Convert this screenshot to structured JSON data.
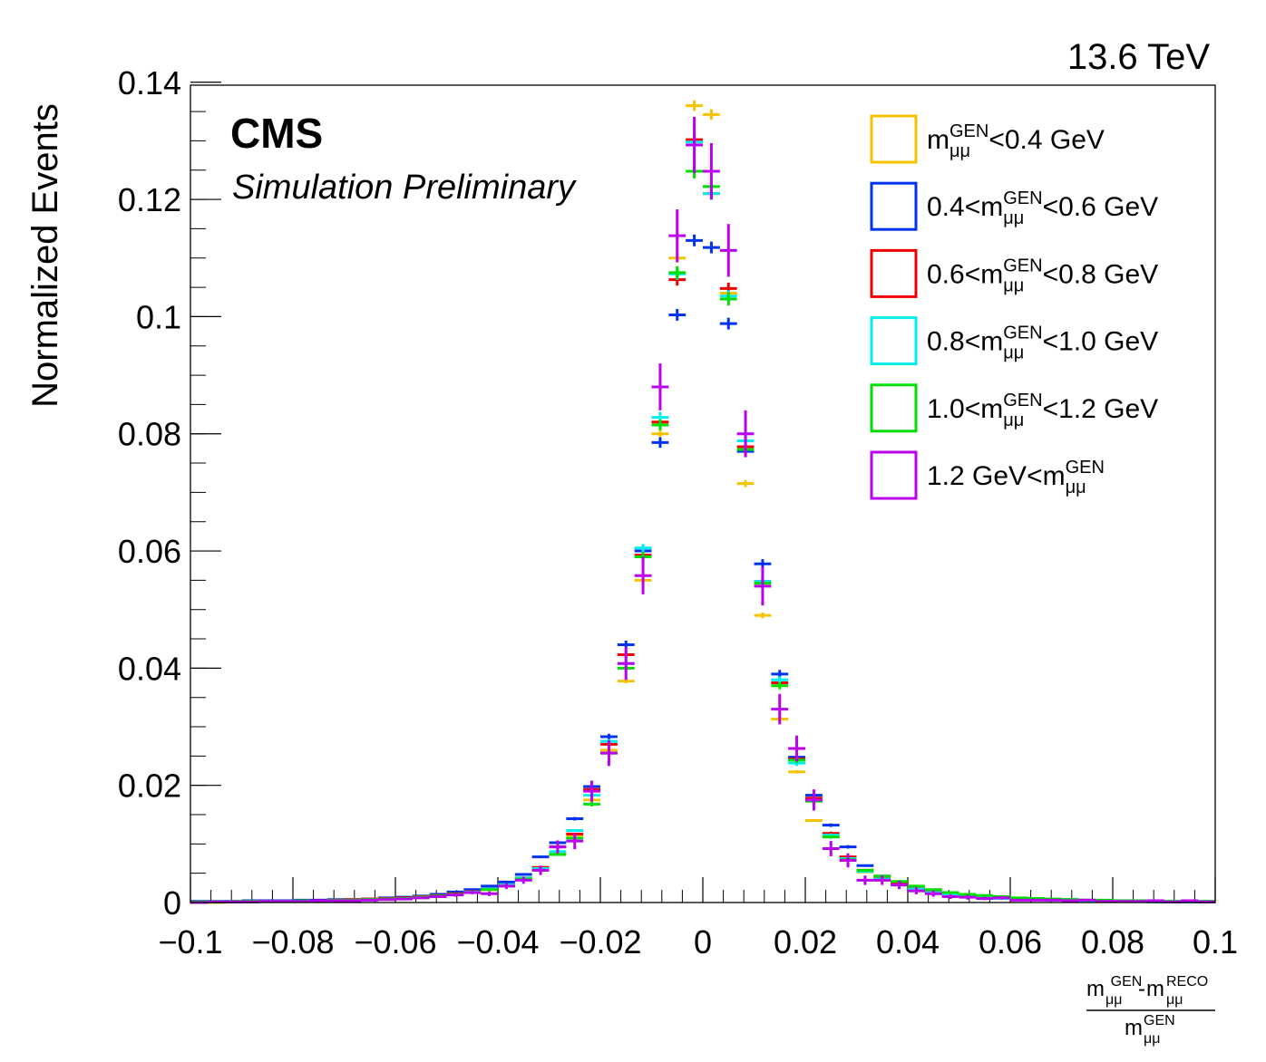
{
  "chart_data": {
    "type": "scatter",
    "energy_label": "13.6 TeV",
    "experiment": "CMS",
    "experiment_sub": "Simulation Preliminary",
    "ylabel": "Normalized Events",
    "xlabel": {
      "numerator": {
        "m1": "m",
        "sub1": "μμ",
        "sup1": "GEN",
        "dash": "-",
        "m2": "m",
        "sub2": "μμ",
        "sup2": "RECO"
      },
      "denominator": {
        "m": "m",
        "sub": "μμ",
        "sup": "GEN"
      }
    },
    "xlim": [
      -0.1,
      0.1
    ],
    "ylim": [
      0,
      0.1395
    ],
    "x_ticks": [
      {
        "value": -0.1,
        "label": "−0.1"
      },
      {
        "value": -0.08,
        "label": "−0.08"
      },
      {
        "value": -0.06,
        "label": "−0.06"
      },
      {
        "value": -0.04,
        "label": "−0.04"
      },
      {
        "value": -0.02,
        "label": "−0.02"
      },
      {
        "value": 0,
        "label": "0"
      },
      {
        "value": 0.02,
        "label": "0.02"
      },
      {
        "value": 0.04,
        "label": "0.04"
      },
      {
        "value": 0.06,
        "label": "0.06"
      },
      {
        "value": 0.08,
        "label": "0.08"
      },
      {
        "value": 0.1,
        "label": "0.1"
      }
    ],
    "y_ticks": [
      {
        "value": 0,
        "label": "0"
      },
      {
        "value": 0.02,
        "label": "0.02"
      },
      {
        "value": 0.04,
        "label": "0.04"
      },
      {
        "value": 0.06,
        "label": "0.06"
      },
      {
        "value": 0.08,
        "label": "0.08"
      },
      {
        "value": 0.1,
        "label": "0.1"
      },
      {
        "value": 0.12,
        "label": "0.12"
      },
      {
        "value": 0.14,
        "label": "0.14"
      }
    ],
    "bin_width": 0.0033333,
    "legend_placement": "top-right",
    "grid": false,
    "x": [
      -0.09833,
      -0.095,
      -0.09167,
      -0.08833,
      -0.085,
      -0.08167,
      -0.07833,
      -0.075,
      -0.07167,
      -0.06833,
      -0.065,
      -0.06167,
      -0.05833,
      -0.055,
      -0.05167,
      -0.04833,
      -0.045,
      -0.04167,
      -0.03833,
      -0.035,
      -0.03167,
      -0.02833,
      -0.025,
      -0.02167,
      -0.01833,
      -0.015,
      -0.01167,
      -0.00833,
      -0.005,
      -0.00167,
      0.00167,
      0.005,
      0.00833,
      0.01167,
      0.015,
      0.01833,
      0.02167,
      0.025,
      0.02833,
      0.03167,
      0.035,
      0.03833,
      0.04167,
      0.045,
      0.04833,
      0.05167,
      0.055,
      0.05833,
      0.06167,
      0.065,
      0.06833,
      0.07167,
      0.075,
      0.07833,
      0.08167,
      0.085,
      0.08833,
      0.09167,
      0.095,
      0.09833
    ],
    "series": [
      {
        "name": {
          "prefix": "",
          "m": "m",
          "sub": "μμ",
          "sup": "GEN",
          "suffix": "<0.4 GeV"
        },
        "color": "#f5c300",
        "values": [
          0,
          0,
          0.0002,
          0.0002,
          0.0002,
          0.0003,
          0.0003,
          0.0004,
          0.0004,
          0.0005,
          0.0006,
          0.0007,
          0.0008,
          0.001,
          0.0012,
          0.0015,
          0.0018,
          0.0022,
          0.003,
          0.0042,
          0.0055,
          0.0085,
          0.0115,
          0.0175,
          0.026,
          0.0378,
          0.055,
          0.08,
          0.11,
          0.136,
          0.1345,
          0.104,
          0.0715,
          0.049,
          0.0313,
          0.0223,
          0.014,
          0.0112,
          0.0075,
          0.0052,
          0.0038,
          0.003,
          0.0023,
          0.0018,
          0.0014,
          0.0011,
          0.0009,
          0.0007,
          0.0006,
          0.0005,
          0.0004,
          0.0004,
          0.0003,
          0.0003,
          0.0002,
          0.0002,
          0.0002,
          0.0001,
          0.0001,
          0.0001
        ],
        "errors": [
          0,
          0,
          0,
          0,
          0,
          0,
          0,
          0,
          0,
          0,
          0,
          0,
          0,
          0,
          0,
          0,
          0,
          0,
          0,
          0,
          0.0001,
          0.0001,
          0.0002,
          0.0002,
          0.0003,
          0.0004,
          0.0004,
          0.0006,
          0.0008,
          0.0009,
          0.0009,
          0.0008,
          0.0006,
          0.0005,
          0.0004,
          0.0003,
          0.0002,
          0.0002,
          0.0001,
          0.0001,
          0.0001,
          0.0001,
          0,
          0,
          0,
          0,
          0,
          0,
          0,
          0,
          0,
          0,
          0,
          0,
          0,
          0,
          0,
          0,
          0,
          0
        ]
      },
      {
        "name": {
          "prefix": "0.4<",
          "m": "m",
          "sub": "μμ",
          "sup": "GEN",
          "suffix": "<0.6 GeV"
        },
        "color": "#0033ee",
        "values": [
          0.0002,
          0.0002,
          0.0002,
          0.0003,
          0.0003,
          0.0003,
          0.0004,
          0.0004,
          0.0005,
          0.0005,
          0.0006,
          0.0008,
          0.0009,
          0.0011,
          0.0014,
          0.0018,
          0.0022,
          0.0028,
          0.0035,
          0.0048,
          0.0078,
          0.0102,
          0.0143,
          0.0198,
          0.0283,
          0.044,
          0.06,
          0.0785,
          0.1003,
          0.113,
          0.1118,
          0.0988,
          0.077,
          0.0578,
          0.039,
          0.0248,
          0.0183,
          0.0132,
          0.0095,
          0.0063,
          0.0045,
          0.0032,
          0.0025,
          0.0018,
          0.0015,
          0.0012,
          0.001,
          0.0008,
          0.0007,
          0.0006,
          0.0005,
          0.0005,
          0.0004,
          0.0003,
          0.0003,
          0.0003,
          0.0002,
          0.0002,
          0.0002,
          0.0002
        ],
        "errors": [
          0,
          0,
          0,
          0,
          0,
          0,
          0,
          0,
          0,
          0,
          0,
          0,
          0,
          0,
          0,
          0,
          0,
          0,
          0.0001,
          0.0001,
          0.0002,
          0.0002,
          0.0003,
          0.0004,
          0.0005,
          0.0007,
          0.0008,
          0.0009,
          0.001,
          0.001,
          0.001,
          0.001,
          0.0009,
          0.0008,
          0.0007,
          0.0005,
          0.0004,
          0.0003,
          0.0003,
          0.0002,
          0.0002,
          0.0001,
          0.0001,
          0.0001,
          0.0001,
          0,
          0,
          0,
          0,
          0,
          0,
          0,
          0,
          0,
          0,
          0,
          0,
          0,
          0,
          0
        ]
      },
      {
        "name": {
          "prefix": "0.6<",
          "m": "m",
          "sub": "μμ",
          "sup": "GEN",
          "suffix": "<0.8 GeV"
        },
        "color": "#ee0000",
        "values": [
          0,
          0.0001,
          0.0001,
          0.0002,
          0.0002,
          0.0002,
          0.0003,
          0.0003,
          0.0004,
          0.0005,
          0.0006,
          0.0007,
          0.0008,
          0.001,
          0.0012,
          0.0015,
          0.0019,
          0.0023,
          0.003,
          0.0042,
          0.006,
          0.0095,
          0.0117,
          0.0193,
          0.027,
          0.0423,
          0.0593,
          0.082,
          0.1063,
          0.1302,
          0.121,
          0.1048,
          0.0778,
          0.0548,
          0.0375,
          0.0245,
          0.0178,
          0.0118,
          0.0078,
          0.0055,
          0.0042,
          0.0032,
          0.0024,
          0.0018,
          0.0014,
          0.0011,
          0.0009,
          0.0007,
          0.0006,
          0.0005,
          0.0004,
          0.0004,
          0.0003,
          0.0003,
          0.0002,
          0.0002,
          0.0002,
          0.0001,
          0.0001,
          0.0001
        ],
        "errors": [
          0,
          0,
          0,
          0,
          0,
          0,
          0,
          0,
          0,
          0,
          0,
          0,
          0,
          0,
          0,
          0,
          0,
          0,
          0,
          0.0001,
          0.0001,
          0.0002,
          0.0002,
          0.0003,
          0.0005,
          0.0006,
          0.0007,
          0.0008,
          0.001,
          0.0011,
          0.001,
          0.001,
          0.0008,
          0.0007,
          0.0006,
          0.0005,
          0.0004,
          0.0003,
          0.0002,
          0.0002,
          0.0001,
          0.0001,
          0.0001,
          0.0001,
          0,
          0,
          0,
          0,
          0,
          0,
          0,
          0,
          0,
          0,
          0,
          0,
          0,
          0,
          0,
          0
        ]
      },
      {
        "name": {
          "prefix": "0.8<",
          "m": "m",
          "sub": "μμ",
          "sup": "GEN",
          "suffix": "<1.0 GeV"
        },
        "color": "#00eeee",
        "values": [
          0,
          0.0001,
          0.0001,
          0.0001,
          0.0002,
          0.0002,
          0.0002,
          0.0003,
          0.0003,
          0.0004,
          0.0005,
          0.0006,
          0.0007,
          0.0009,
          0.0011,
          0.0014,
          0.0018,
          0.0023,
          0.003,
          0.0042,
          0.0058,
          0.0087,
          0.0123,
          0.0183,
          0.0275,
          0.0408,
          0.0605,
          0.0828,
          0.1073,
          0.1298,
          0.121,
          0.1035,
          0.0788,
          0.0548,
          0.038,
          0.0238,
          0.0173,
          0.0115,
          0.0075,
          0.0053,
          0.004,
          0.003,
          0.0023,
          0.0017,
          0.0013,
          0.001,
          0.0008,
          0.0007,
          0.0006,
          0.0005,
          0.0004,
          0.0003,
          0.0003,
          0.0002,
          0.0002,
          0.0002,
          0.0001,
          0.0001,
          0.0001,
          0.0001
        ],
        "errors": [
          0,
          0,
          0,
          0,
          0,
          0,
          0,
          0,
          0,
          0,
          0,
          0,
          0,
          0,
          0,
          0,
          0,
          0,
          0,
          0.0001,
          0.0001,
          0.0002,
          0.0002,
          0.0003,
          0.0004,
          0.0006,
          0.0007,
          0.0009,
          0.001,
          0.0011,
          0.0011,
          0.001,
          0.0009,
          0.0007,
          0.0006,
          0.0005,
          0.0004,
          0.0003,
          0.0002,
          0.0002,
          0.0001,
          0.0001,
          0.0001,
          0.0001,
          0,
          0,
          0,
          0,
          0,
          0,
          0,
          0,
          0,
          0,
          0,
          0,
          0,
          0,
          0,
          0
        ]
      },
      {
        "name": {
          "prefix": "1.0<",
          "m": "m",
          "sub": "μμ",
          "sup": "GEN",
          "suffix": "<1.2 GeV"
        },
        "color": "#00dd00",
        "values": [
          0.0001,
          0.0001,
          0.0001,
          0.0002,
          0.0002,
          0.0002,
          0.0003,
          0.0003,
          0.0004,
          0.0004,
          0.0005,
          0.0006,
          0.0007,
          0.0009,
          0.0011,
          0.0014,
          0.0017,
          0.0022,
          0.0028,
          0.004,
          0.0055,
          0.0082,
          0.011,
          0.0168,
          0.0255,
          0.04,
          0.059,
          0.0815,
          0.1075,
          0.1248,
          0.1222,
          0.103,
          0.0773,
          0.0545,
          0.037,
          0.0243,
          0.0173,
          0.0112,
          0.0073,
          0.0055,
          0.0045,
          0.0036,
          0.0028,
          0.0022,
          0.0017,
          0.0014,
          0.0012,
          0.001,
          0.0008,
          0.0007,
          0.0006,
          0.0005,
          0.0004,
          0.0004,
          0.0003,
          0.0003,
          0.0002,
          0.0002,
          0.0002,
          0.0002
        ],
        "errors": [
          0,
          0,
          0,
          0,
          0,
          0,
          0,
          0,
          0,
          0,
          0,
          0,
          0,
          0,
          0,
          0,
          0,
          0,
          0.0001,
          0.0001,
          0.0001,
          0.0002,
          0.0003,
          0.0004,
          0.0005,
          0.0006,
          0.0008,
          0.0009,
          0.0011,
          0.0012,
          0.0012,
          0.0011,
          0.0009,
          0.0008,
          0.0006,
          0.0005,
          0.0004,
          0.0003,
          0.0003,
          0.0002,
          0.0002,
          0.0001,
          0.0001,
          0.0001,
          0.0001,
          0,
          0,
          0,
          0,
          0,
          0,
          0,
          0,
          0,
          0,
          0,
          0,
          0,
          0,
          0
        ]
      },
      {
        "name": {
          "prefix": "1.2 GeV<",
          "m": "m",
          "sub": "μμ",
          "sup": "GEN",
          "suffix": ""
        },
        "color": "#bb00ee",
        "values": [
          0,
          0.0001,
          0.0001,
          0.0001,
          0.0002,
          0.0002,
          0.0002,
          0.0003,
          0.0003,
          0.0003,
          0.0004,
          0.0005,
          0.0006,
          0.0008,
          0.001,
          0.0013,
          0.0017,
          0.0015,
          0.0028,
          0.0038,
          0.0055,
          0.0095,
          0.0105,
          0.019,
          0.0255,
          0.0408,
          0.0558,
          0.088,
          0.1138,
          0.1293,
          0.1248,
          0.1113,
          0.08,
          0.054,
          0.033,
          0.0263,
          0.0175,
          0.0092,
          0.0072,
          0.0038,
          0.0038,
          0.003,
          0.002,
          0.0015,
          0.001,
          0.0009,
          0.0007,
          0.0008,
          0.0004,
          0.0004,
          0.0004,
          0.0003,
          0.0004,
          0.0002,
          0.0002,
          0.0002,
          0.0003,
          0.0001,
          0.0003,
          0.0001
        ],
        "errors": [
          0,
          0,
          0,
          0,
          0,
          0,
          0,
          0,
          0,
          0.0001,
          0.0001,
          0.0001,
          0.0001,
          0.0002,
          0.0002,
          0.0003,
          0.0003,
          0.0004,
          0.0005,
          0.0006,
          0.0008,
          0.0011,
          0.0014,
          0.0018,
          0.0022,
          0.0028,
          0.0032,
          0.004,
          0.0045,
          0.0048,
          0.0048,
          0.0045,
          0.004,
          0.0033,
          0.0026,
          0.0022,
          0.0018,
          0.0013,
          0.0012,
          0.0008,
          0.0008,
          0.0007,
          0.0006,
          0.0005,
          0.0004,
          0.0004,
          0.0003,
          0.0003,
          0.0002,
          0.0002,
          0.0002,
          0.0002,
          0.0002,
          0.0001,
          0.0001,
          0.0001,
          0.0002,
          0.0001,
          0.0002,
          0.0001
        ]
      }
    ]
  }
}
